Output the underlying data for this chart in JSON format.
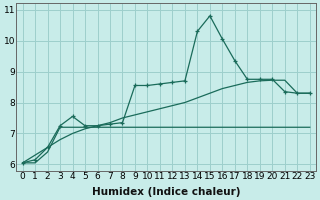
{
  "xlabel": "Humidex (Indice chaleur)",
  "ylabel": "",
  "background_color": "#c8ece9",
  "grid_color": "#9dcfcc",
  "line_color": "#1a6b5a",
  "x_data": [
    0,
    1,
    2,
    3,
    4,
    5,
    6,
    7,
    8,
    9,
    10,
    11,
    12,
    13,
    14,
    15,
    16,
    17,
    18,
    19,
    20,
    21,
    22,
    23
  ],
  "y_main": [
    6.05,
    6.15,
    6.55,
    7.25,
    7.55,
    7.25,
    7.25,
    7.3,
    7.35,
    8.55,
    8.55,
    8.6,
    8.65,
    8.7,
    10.3,
    10.8,
    10.05,
    9.35,
    8.75,
    8.75,
    8.75,
    8.35,
    8.3,
    8.3
  ],
  "y_trend": [
    6.05,
    6.3,
    6.55,
    6.8,
    7.0,
    7.15,
    7.25,
    7.35,
    7.5,
    7.6,
    7.7,
    7.8,
    7.9,
    8.0,
    8.15,
    8.3,
    8.45,
    8.55,
    8.65,
    8.7,
    8.72,
    8.72,
    8.3,
    8.3
  ],
  "y_flat": [
    6.05,
    6.05,
    6.4,
    7.2,
    7.2,
    7.2,
    7.2,
    7.2,
    7.2,
    7.2,
    7.2,
    7.2,
    7.2,
    7.2,
    7.2,
    7.2,
    7.2,
    7.2,
    7.2,
    7.2,
    7.2,
    7.2,
    7.2,
    7.2
  ],
  "ylim": [
    5.8,
    11.2
  ],
  "xlim": [
    -0.5,
    23.5
  ],
  "yticks": [
    6,
    7,
    8,
    9,
    10,
    11
  ],
  "xticks": [
    0,
    1,
    2,
    3,
    4,
    5,
    6,
    7,
    8,
    9,
    10,
    11,
    12,
    13,
    14,
    15,
    16,
    17,
    18,
    19,
    20,
    21,
    22,
    23
  ],
  "fontsize_ticks": 6.5,
  "fontsize_label": 7.5
}
